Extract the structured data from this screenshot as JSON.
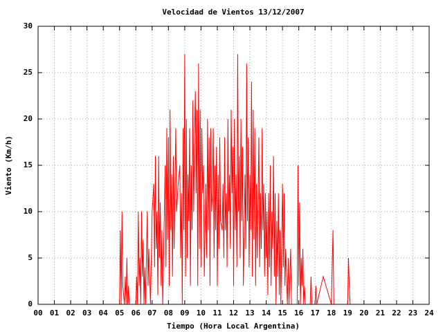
{
  "chart_data": {
    "type": "line",
    "title": "Velocidad de Vientos 13/12/2007",
    "x_label": "Tiempo (Hora Local Argentina)",
    "y_label": "Viento (Km/h)",
    "x": [
      0,
      5.0,
      5.05,
      5.1,
      5.15,
      5.2,
      5.3,
      5.35,
      5.4,
      5.45,
      5.5,
      5.55,
      5.6,
      6.0,
      6.05,
      6.1,
      6.15,
      6.2,
      6.25,
      6.3,
      6.35,
      6.4,
      6.45,
      6.5,
      6.55,
      6.6,
      6.65,
      6.7,
      6.75,
      6.8,
      6.9,
      7.0,
      7.1,
      7.15,
      7.2,
      7.25,
      7.3,
      7.35,
      7.4,
      7.45,
      7.5,
      7.55,
      7.6,
      7.65,
      7.75,
      7.8,
      7.85,
      7.9,
      7.95,
      8.0,
      8.05,
      8.1,
      8.15,
      8.2,
      8.25,
      8.3,
      8.35,
      8.45,
      8.5,
      8.6,
      8.7,
      8.75,
      8.8,
      8.85,
      8.9,
      8.95,
      9.0,
      9.05,
      9.1,
      9.15,
      9.2,
      9.25,
      9.3,
      9.35,
      9.4,
      9.45,
      9.5,
      9.55,
      9.6,
      9.65,
      9.7,
      9.75,
      9.8,
      9.85,
      9.9,
      9.95,
      10.0,
      10.05,
      10.1,
      10.15,
      10.2,
      10.3,
      10.35,
      10.4,
      10.45,
      10.5,
      10.55,
      10.6,
      10.65,
      10.7,
      10.75,
      10.8,
      10.85,
      10.9,
      10.95,
      11.0,
      11.05,
      11.1,
      11.15,
      11.2,
      11.3,
      11.35,
      11.4,
      11.45,
      11.5,
      11.55,
      11.6,
      11.65,
      11.7,
      11.75,
      11.8,
      11.85,
      11.9,
      11.95,
      12.0,
      12.05,
      12.1,
      12.15,
      12.2,
      12.25,
      12.3,
      12.35,
      12.4,
      12.45,
      12.5,
      12.55,
      12.6,
      12.7,
      12.75,
      12.8,
      12.85,
      12.9,
      12.95,
      13.0,
      13.05,
      13.1,
      13.15,
      13.2,
      13.25,
      13.3,
      13.35,
      13.4,
      13.45,
      13.55,
      13.6,
      13.65,
      13.7,
      13.75,
      13.8,
      13.85,
      13.9,
      13.95,
      14.0,
      14.05,
      14.1,
      14.15,
      14.2,
      14.25,
      14.3,
      14.35,
      14.4,
      14.45,
      14.5,
      14.55,
      14.6,
      14.65,
      14.7,
      14.75,
      14.8,
      14.85,
      14.9,
      15.0,
      15.05,
      15.1,
      15.15,
      15.2,
      15.3,
      15.35,
      15.4,
      15.5,
      15.55,
      15.9,
      15.95,
      16.0,
      16.05,
      16.1,
      16.15,
      16.2,
      16.25,
      16.3,
      16.35,
      16.4,
      16.7,
      16.75,
      16.8,
      17.0,
      17.05,
      17.1,
      17.5,
      18.0,
      18.1,
      18.15,
      19.0,
      19.05,
      19.1,
      19.15,
      19.2
    ],
    "series": [
      {
        "color": "#ff0000",
        "values": [
          0,
          0,
          8,
          0,
          10,
          2,
          0,
          3,
          0,
          5,
          0,
          2,
          0,
          0,
          3,
          0,
          10,
          2,
          5,
          0,
          10,
          3,
          7,
          0,
          4,
          0,
          5,
          10,
          2,
          6,
          0,
          10,
          13,
          4,
          16,
          6,
          10,
          1,
          16,
          5,
          11,
          2,
          8,
          0,
          10,
          15,
          4,
          19,
          7,
          18,
          2,
          21,
          8,
          14,
          3,
          16,
          6,
          19,
          10,
          13,
          15,
          5,
          12,
          0,
          19,
          8,
          27,
          3,
          20,
          5,
          14,
          9,
          19,
          2,
          15,
          8,
          22,
          10,
          18,
          23,
          12,
          21,
          2,
          26,
          6,
          21,
          4,
          19,
          12,
          15,
          3,
          13,
          5,
          20,
          8,
          18,
          2,
          19,
          10,
          12,
          19,
          5,
          15,
          8,
          17,
          2,
          14,
          6,
          18,
          9,
          8,
          13,
          5,
          18,
          8,
          12,
          4,
          20,
          10,
          14,
          6,
          21,
          12,
          17,
          2,
          20,
          8,
          14,
          4,
          27,
          10,
          16,
          5,
          20,
          9,
          17,
          2,
          14,
          6,
          26,
          9,
          18,
          4,
          14,
          8,
          24,
          3,
          21,
          7,
          19,
          2,
          13,
          5,
          18,
          4,
          12,
          6,
          19,
          8,
          13,
          3,
          12,
          5,
          10,
          1,
          12,
          4,
          15,
          2,
          10,
          6,
          16,
          3,
          12,
          0,
          9,
          3,
          12,
          1,
          8,
          0,
          13,
          4,
          12,
          2,
          6,
          0,
          5,
          0,
          6,
          0,
          0,
          15,
          2,
          11,
          0,
          5,
          2,
          6,
          0,
          2,
          0,
          0,
          3,
          0,
          0,
          2,
          0,
          3,
          0,
          8,
          0,
          0,
          5,
          2,
          0,
          0
        ]
      }
    ],
    "xlim": [
      0,
      24
    ],
    "xticks": [
      {
        "value": 0,
        "label": "00"
      },
      {
        "value": 1,
        "label": "01"
      },
      {
        "value": 2,
        "label": "02"
      },
      {
        "value": 3,
        "label": "03"
      },
      {
        "value": 4,
        "label": "04"
      },
      {
        "value": 5,
        "label": "05"
      },
      {
        "value": 6,
        "label": "06"
      },
      {
        "value": 7,
        "label": "07"
      },
      {
        "value": 8,
        "label": "08"
      },
      {
        "value": 9,
        "label": "09"
      },
      10,
      11,
      12,
      13,
      14,
      15,
      16,
      17,
      18,
      19,
      20,
      21,
      22,
      23,
      24
    ],
    "ylim": [
      0,
      30
    ],
    "yticks": [
      0,
      5,
      10,
      15,
      20,
      25,
      30
    ],
    "grid": true
  }
}
